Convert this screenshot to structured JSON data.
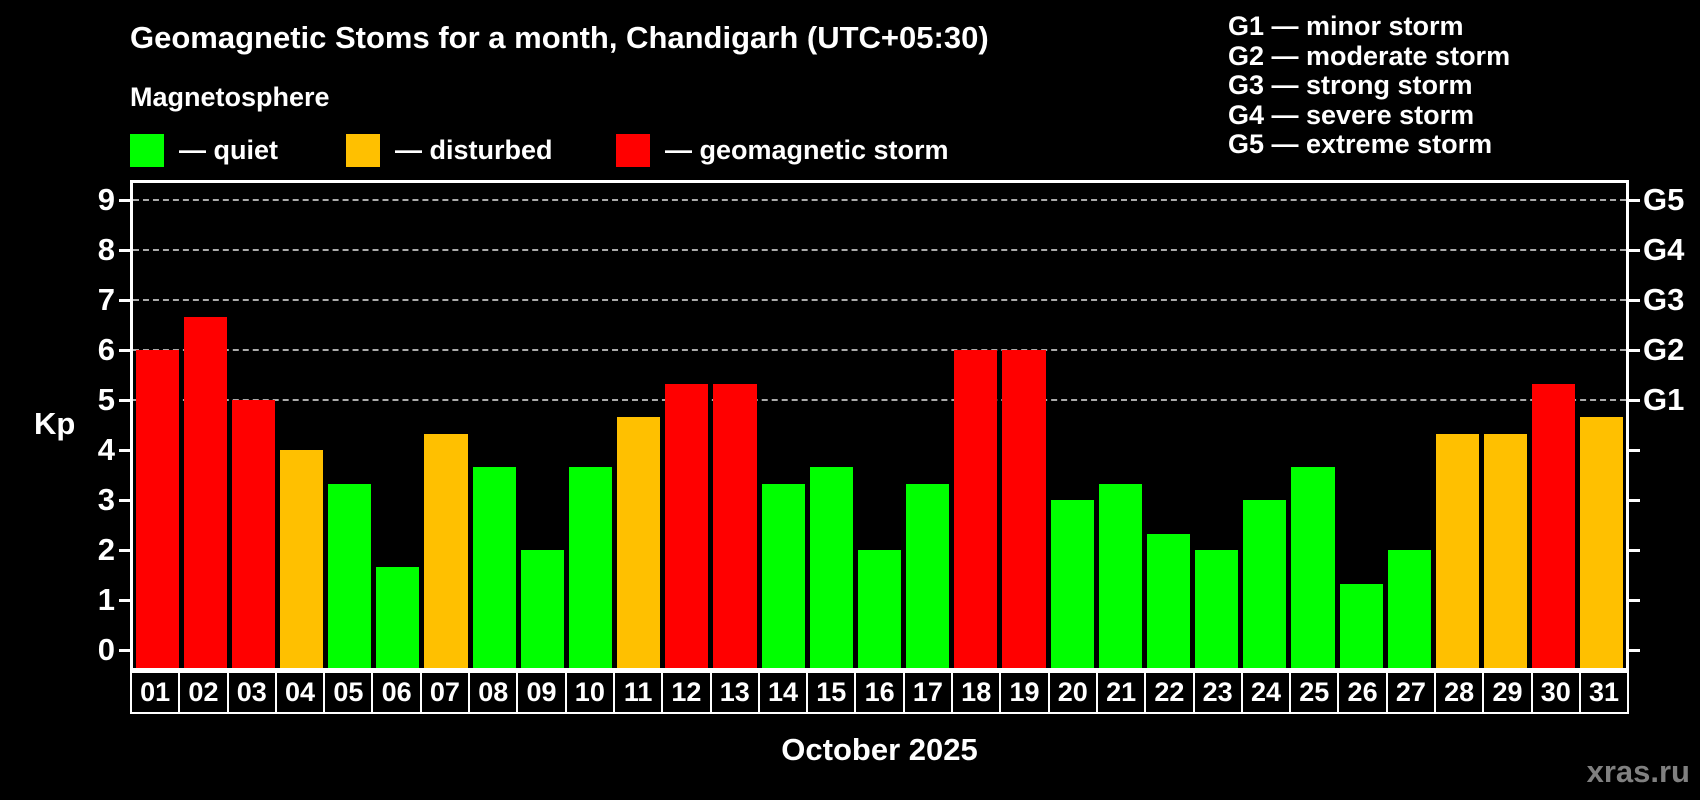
{
  "title": "Geomagnetic Stoms for a month, Chandigarh (UTC+05:30)",
  "subtitle": "Magnetosphere",
  "legend": {
    "items": [
      {
        "status": "quiet",
        "label": "— quiet",
        "color": "#00ff00"
      },
      {
        "status": "disturbed",
        "label": "— disturbed",
        "color": "#ffc000"
      },
      {
        "status": "storm",
        "label": "— geomagnetic storm",
        "color": "#ff0000"
      }
    ]
  },
  "storm_scale_legend": {
    "lines": [
      "G1 — minor storm",
      "G2 — moderate storm",
      "G3 — strong storm",
      "G4 — severe storm",
      "G5 — extreme storm"
    ]
  },
  "watermark": "xras.ru",
  "colors": {
    "quiet": "#00ff00",
    "disturbed": "#ffc000",
    "storm": "#ff0000",
    "grid": "#aaaaaa",
    "axis": "#ffffff",
    "watermark": "#808080"
  },
  "chart_data": {
    "type": "bar",
    "title": "Geomagnetic Stoms for a month, Chandigarh (UTC+05:30)",
    "xlabel": "October 2025",
    "ylabel": "Kp",
    "ylim": [
      0,
      9
    ],
    "yticks": [
      0,
      1,
      2,
      3,
      4,
      5,
      6,
      7,
      8,
      9
    ],
    "gridlines_at_kp": [
      5,
      6,
      7,
      8,
      9
    ],
    "right_axis": [
      {
        "kp": 5,
        "label": "G1"
      },
      {
        "kp": 6,
        "label": "G2"
      },
      {
        "kp": 7,
        "label": "G3"
      },
      {
        "kp": 8,
        "label": "G4"
      },
      {
        "kp": 9,
        "label": "G5"
      }
    ],
    "categories": [
      "01",
      "02",
      "03",
      "04",
      "05",
      "06",
      "07",
      "08",
      "09",
      "10",
      "11",
      "12",
      "13",
      "14",
      "15",
      "16",
      "17",
      "18",
      "19",
      "20",
      "21",
      "22",
      "23",
      "24",
      "25",
      "26",
      "27",
      "28",
      "29",
      "30",
      "31"
    ],
    "values": [
      6,
      6.67,
      5,
      4,
      3.33,
      1.67,
      4.33,
      3.67,
      2,
      3.67,
      4.67,
      5.33,
      5.33,
      3.33,
      3.67,
      2,
      3.33,
      6,
      6,
      3,
      3.33,
      2.33,
      2,
      3,
      3.67,
      1.33,
      2,
      4.33,
      4.33,
      5.33,
      4.67
    ],
    "statuses": [
      "storm",
      "storm",
      "storm",
      "disturbed",
      "quiet",
      "quiet",
      "disturbed",
      "quiet",
      "quiet",
      "quiet",
      "disturbed",
      "storm",
      "storm",
      "quiet",
      "quiet",
      "quiet",
      "quiet",
      "storm",
      "storm",
      "quiet",
      "quiet",
      "quiet",
      "quiet",
      "quiet",
      "quiet",
      "quiet",
      "quiet",
      "disturbed",
      "disturbed",
      "storm",
      "disturbed"
    ],
    "legend_position": "top",
    "grid": true
  }
}
